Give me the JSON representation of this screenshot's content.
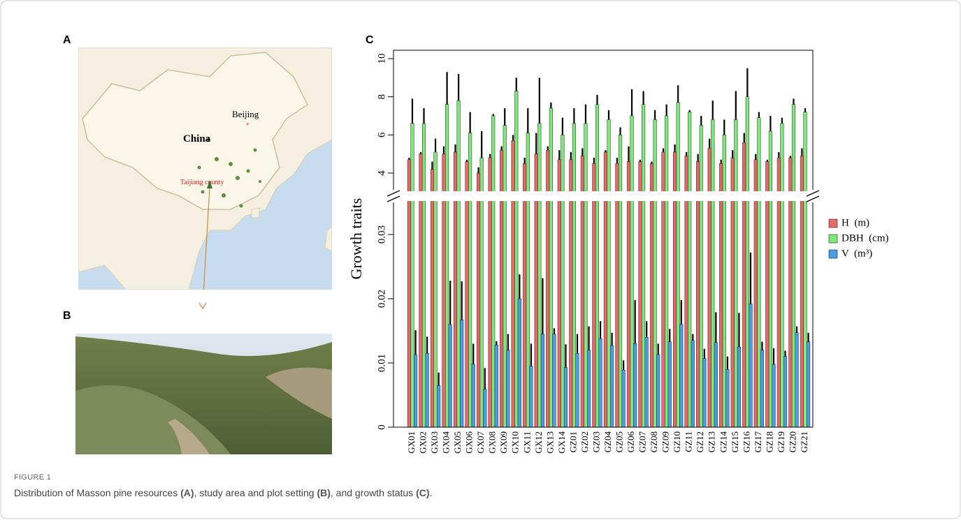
{
  "panels": {
    "a": "A",
    "b": "B",
    "c": "C"
  },
  "map": {
    "country": "China",
    "capital": "Beijing",
    "site": "Taijiang county"
  },
  "caption": {
    "label": "FIGURE 1",
    "text": [
      "Distribution of Masson pine resources ",
      "(A)",
      ", study area and plot setting ",
      "(B)",
      ", and growth status ",
      "(C)",
      "."
    ]
  },
  "chart_data": {
    "type": "bar",
    "ylabel": "Growth traits",
    "categories": [
      "GX01",
      "GX02",
      "GX03",
      "GX04",
      "GX05",
      "GX06",
      "GX07",
      "GX08",
      "GX09",
      "GX10",
      "GX11",
      "GX12",
      "GX13",
      "GX14",
      "GZ01",
      "GZ02",
      "GZ03",
      "GZ04",
      "GZ05",
      "GZ06",
      "GZ07",
      "GZ08",
      "GZ09",
      "GZ10",
      "GZ11",
      "GZ12",
      "GZ13",
      "GZ14",
      "GZ15",
      "GZ16",
      "GZ17",
      "GZ18",
      "GZ19",
      "GZ20",
      "GZ21"
    ],
    "ylim_upper": [
      3.12,
      10.44
    ],
    "yticks_upper": [
      4,
      6,
      8,
      10
    ],
    "ylim_lower": [
      0,
      0.035
    ],
    "yticks_lower": [
      0,
      0.01,
      0.02,
      0.03
    ],
    "series": [
      {
        "name": "H  (m)",
        "color": "#e8686a",
        "axis": "upper",
        "values": [
          4.7,
          5.0,
          4.2,
          5.0,
          5.1,
          4.6,
          4.0,
          4.8,
          5.2,
          5.7,
          4.5,
          5.0,
          5.2,
          4.7,
          4.7,
          4.9,
          4.5,
          5.1,
          4.5,
          4.6,
          4.6,
          4.5,
          5.1,
          5.1,
          4.9,
          4.6,
          5.3,
          4.5,
          4.8,
          5.6,
          4.7,
          4.6,
          4.8,
          4.8,
          4.9
        ],
        "errors": [
          0.1,
          0.1,
          0.4,
          0.4,
          0.4,
          0.1,
          0.3,
          0.2,
          0.2,
          0.3,
          0.3,
          1.1,
          0.2,
          0.5,
          0.4,
          0.4,
          0.3,
          0.1,
          0.3,
          0.8,
          0.1,
          0.1,
          0.2,
          0.4,
          0.2,
          0.4,
          0.5,
          0.2,
          0.4,
          0.5,
          0.3,
          0.1,
          0.3,
          0.1,
          0.4
        ]
      },
      {
        "name": "DBH  (cm)",
        "color": "#7ee87a",
        "axis": "upper",
        "values": [
          6.6,
          6.6,
          5.1,
          7.6,
          7.8,
          6.1,
          4.8,
          7.0,
          6.5,
          8.3,
          6.1,
          6.6,
          7.4,
          6.0,
          6.6,
          6.6,
          7.6,
          6.8,
          6.0,
          7.0,
          7.6,
          6.8,
          7.0,
          7.7,
          7.2,
          6.5,
          6.8,
          6.0,
          6.8,
          8.0,
          6.9,
          6.2,
          6.6,
          7.6,
          7.2
        ],
        "errors": [
          1.3,
          0.8,
          0.7,
          1.7,
          1.4,
          1.1,
          1.4,
          0.1,
          0.9,
          0.7,
          1.3,
          2.4,
          0.3,
          0.9,
          0.8,
          1.0,
          0.5,
          0.5,
          0.4,
          1.4,
          0.7,
          0.5,
          0.6,
          0.9,
          0.1,
          0.5,
          1.0,
          0.8,
          1.5,
          1.5,
          0.3,
          0.8,
          0.3,
          0.3,
          0.2
        ]
      },
      {
        "name": "V  (m³)",
        "color": "#4a9ee8",
        "axis": "lower",
        "values": [
          0.0113,
          0.0115,
          0.0065,
          0.016,
          0.0167,
          0.0098,
          0.0059,
          0.0128,
          0.012,
          0.02,
          0.0095,
          0.0145,
          0.0145,
          0.0093,
          0.0115,
          0.012,
          0.0138,
          0.0127,
          0.0089,
          0.013,
          0.014,
          0.0113,
          0.0133,
          0.016,
          0.0135,
          0.0107,
          0.0132,
          0.009,
          0.0125,
          0.0192,
          0.012,
          0.0098,
          0.011,
          0.0147,
          0.0133
        ],
        "errors": [
          0.0038,
          0.0026,
          0.002,
          0.0068,
          0.006,
          0.0032,
          0.0033,
          0.0006,
          0.0025,
          0.0038,
          0.0035,
          0.0087,
          0.0009,
          0.0036,
          0.003,
          0.0037,
          0.0027,
          0.002,
          0.0015,
          0.0068,
          0.0025,
          0.0017,
          0.002,
          0.0038,
          0.001,
          0.0015,
          0.0047,
          0.002,
          0.0053,
          0.008,
          0.0013,
          0.0025,
          0.0009,
          0.001,
          0.0014
        ]
      }
    ]
  }
}
